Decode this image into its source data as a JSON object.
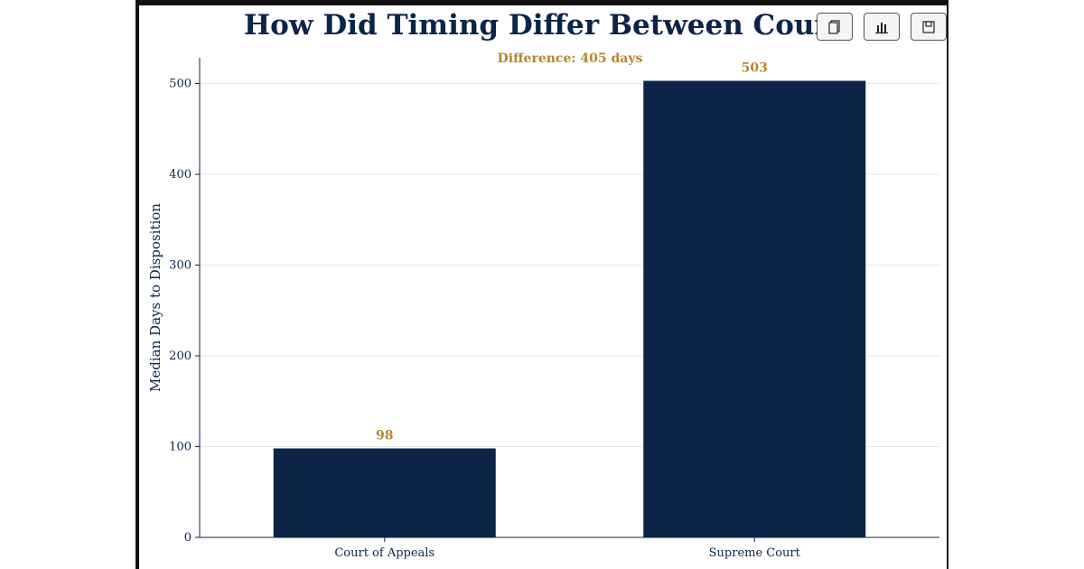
{
  "toolbar": {
    "buttons": [
      {
        "icon": "copy-icon"
      },
      {
        "icon": "bar-chart-icon"
      },
      {
        "icon": "save-icon"
      }
    ]
  },
  "chart_data": {
    "type": "bar",
    "title": "How Did Timing Differ Between Court",
    "annotation": "Difference: 405 days",
    "categories": [
      "Court of Appeals",
      "Supreme Court"
    ],
    "values": [
      98,
      503
    ],
    "data_labels": [
      "98",
      "503"
    ],
    "xlabel": "",
    "ylabel": "Median Days to Disposition",
    "ylim": [
      0,
      530
    ],
    "yticks": [
      0,
      100,
      200,
      300,
      400,
      500
    ],
    "grid": true,
    "bar_color": "#0b2447",
    "label_color": "#b8862b"
  }
}
